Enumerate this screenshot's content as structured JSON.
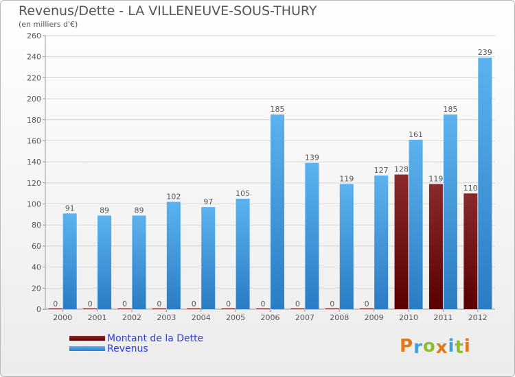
{
  "chart_data": {
    "type": "bar",
    "title": "Revenus/Dette - LA VILLENEUVE-SOUS-THURY",
    "subtitle": "(en milliers d'€)",
    "xlabel": "",
    "ylabel": "",
    "ylim": [
      0,
      260
    ],
    "yticks": [
      0,
      20,
      40,
      60,
      80,
      100,
      120,
      140,
      160,
      180,
      200,
      220,
      240,
      260
    ],
    "grid": true,
    "legend_position": "bottom-left",
    "categories": [
      "2000",
      "2001",
      "2002",
      "2003",
      "2004",
      "2005",
      "2006",
      "2007",
      "2008",
      "2009",
      "2010",
      "2011",
      "2012"
    ],
    "series": [
      {
        "name": "Montant de la Dette",
        "color": "#6b0000",
        "values": [
          0,
          0,
          0,
          0,
          0,
          0,
          0,
          0,
          0,
          0,
          128,
          119,
          110
        ]
      },
      {
        "name": "Revenus",
        "color": "#4aa3e6",
        "values": [
          91,
          89,
          89,
          102,
          97,
          105,
          185,
          139,
          119,
          127,
          161,
          185,
          239
        ]
      }
    ]
  },
  "logo": {
    "text": "Proxiti",
    "colors": [
      "#e07a18",
      "#3d9fd8",
      "#8bbf2a",
      "#e07a18",
      "#3d9fd8",
      "#8bbf2a",
      "#e07a18"
    ]
  }
}
